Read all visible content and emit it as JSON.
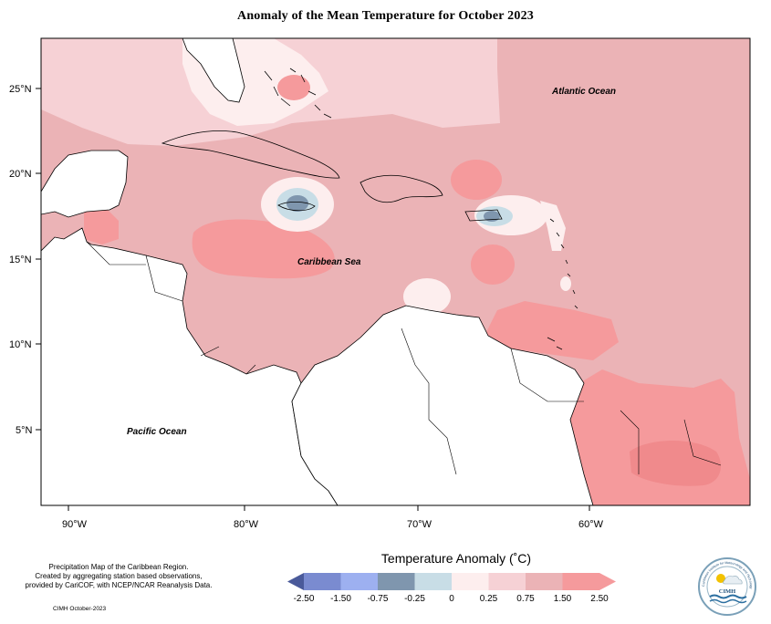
{
  "title": "Anomaly of the Mean Temperature for October 2023",
  "axes": {
    "x_ticks": [
      "90°W",
      "80°W",
      "70°W",
      "60°W"
    ],
    "y_ticks": [
      "25°N",
      "20°N",
      "15°N",
      "10°N",
      "5°N"
    ]
  },
  "labels": {
    "atlantic": "Atlantic Ocean",
    "caribbean": "Caribbean Sea",
    "pacific": "Pacific Ocean"
  },
  "credits": {
    "line1": "Precipitation Map of the Caribbean Region.",
    "line2": "Created by aggregating station based observations,",
    "line3": "provided by CariCOF, with NCEP/NCAR Reanalysis Data.",
    "date": "CIMH October-2023"
  },
  "legend": {
    "title": "Temperature Anomaly (˚C)",
    "labels": [
      "-2.50",
      "-1.50",
      "-0.75",
      "-0.25",
      "0",
      "0.25",
      "0.75",
      "1.50",
      "2.50"
    ],
    "colors": [
      "#4a5a9a",
      "#7a8bd0",
      "#9db0f0",
      "#7f96ae",
      "#c8dde6",
      "#fdeeee",
      "#f6d1d5",
      "#ebb3b6",
      "#f59a9c"
    ]
  },
  "logo": {
    "text": "CIMH",
    "ring_text": "Caribbean Institute for Meteorology and Hydrology"
  }
}
